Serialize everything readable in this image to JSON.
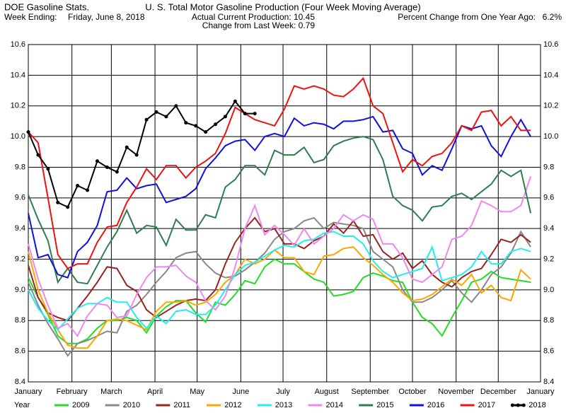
{
  "chart_data": {
    "type": "line",
    "header": {
      "left_title": "DOE Gasoline Stats.",
      "week_label": "Week Ending:",
      "week_value": "Friday, June 8, 2018",
      "title": "U. S. Total Motor Gasoline Production (Four Week Moving Average)",
      "production": "Actual Current Production: 10.45",
      "change": "Change from Last Week: 0.79",
      "pct_label": "Percent Change from One Year Ago:",
      "pct_value": "6.2%"
    },
    "legend_title": "Year",
    "x": [
      0,
      1,
      2,
      3,
      4,
      5,
      6,
      7,
      8,
      9,
      10,
      11,
      12,
      13,
      14,
      15,
      16,
      17,
      18,
      19,
      20,
      21,
      22,
      23,
      24,
      25,
      26,
      27,
      28,
      29,
      30,
      31,
      32,
      33,
      34,
      35,
      36,
      37,
      38,
      39,
      40,
      41,
      42,
      43,
      44,
      45,
      46,
      47,
      48,
      49,
      50,
      51
    ],
    "xlim": [
      0,
      52
    ],
    "xticks": [
      {
        "value": 0,
        "label": "January"
      },
      {
        "value": 4.43,
        "label": "February"
      },
      {
        "value": 8.43,
        "label": "March"
      },
      {
        "value": 12.86,
        "label": "April"
      },
      {
        "value": 17.14,
        "label": "May"
      },
      {
        "value": 21.57,
        "label": "June"
      },
      {
        "value": 25.86,
        "label": "July"
      },
      {
        "value": 30.29,
        "label": "August"
      },
      {
        "value": 34.71,
        "label": "September"
      },
      {
        "value": 39,
        "label": "October"
      },
      {
        "value": 43.43,
        "label": "November"
      },
      {
        "value": 47.71,
        "label": "December"
      },
      {
        "value": 52,
        "label": "January"
      }
    ],
    "ylim": [
      8.4,
      10.6
    ],
    "yticks": [
      8.4,
      8.6,
      8.8,
      {
        "value": 9,
        "label": "9.0"
      },
      9.2,
      9.4,
      9.6,
      9.8,
      {
        "value": 10,
        "label": "10.0"
      },
      10.2,
      10.4,
      10.6
    ],
    "grid": true,
    "series": [
      {
        "name": "2009",
        "color": "#22dd22",
        "values": [
          9.08,
          8.95,
          8.84,
          8.7,
          8.65,
          8.65,
          8.68,
          8.75,
          8.8,
          8.8,
          8.82,
          8.8,
          8.72,
          8.83,
          8.89,
          8.93,
          8.93,
          8.85,
          8.79,
          8.92,
          8.9,
          8.97,
          9.06,
          9.04,
          9.15,
          9.2,
          9.17,
          9.17,
          9.12,
          9.07,
          9.05,
          8.96,
          8.97,
          8.99,
          9.08,
          9.11,
          9.09,
          9.06,
          9.05,
          8.92,
          8.82,
          8.78,
          8.7,
          8.82,
          8.93,
          9.05,
          9.07,
          9.12,
          9.08,
          9.07,
          9.06,
          9.05
        ]
      },
      {
        "name": "2010",
        "color": "#888888",
        "values": [
          9.05,
          8.9,
          8.78,
          8.68,
          8.57,
          8.65,
          8.67,
          8.7,
          8.73,
          8.72,
          8.86,
          8.9,
          8.97,
          9.05,
          9.12,
          9.21,
          9.24,
          9.25,
          9.17,
          9.11,
          9.08,
          9.09,
          9.13,
          9.18,
          9.24,
          9.33,
          9.38,
          9.4,
          9.45,
          9.47,
          9.4,
          9.44,
          9.43,
          9.42,
          9.4,
          9.25,
          9.2,
          9.15,
          9.0,
          8.92,
          8.92,
          8.95,
          9.0,
          9.06,
          8.98,
          8.92,
          9.0,
          9.1,
          9.15,
          9.24,
          9.38,
          9.28
        ]
      },
      {
        "name": "2011",
        "color": "#9b2222",
        "values": [
          9.16,
          8.95,
          8.85,
          8.82,
          8.8,
          8.88,
          8.96,
          9.05,
          9.15,
          9.14,
          9.03,
          8.99,
          8.87,
          8.82,
          8.86,
          8.9,
          8.93,
          8.94,
          8.93,
          9.0,
          9.17,
          9.31,
          9.4,
          9.47,
          9.38,
          9.4,
          9.3,
          9.3,
          9.27,
          9.32,
          9.35,
          9.43,
          9.37,
          9.45,
          9.35,
          9.36,
          9.25,
          9.2,
          9.24,
          9.14,
          9.19,
          9.1,
          9.05,
          9.02,
          9.08,
          9.12,
          9.14,
          9.23,
          9.33,
          9.31,
          9.36,
          9.31
        ]
      },
      {
        "name": "2012",
        "color": "#ffa500",
        "values": [
          9.25,
          9.0,
          8.85,
          8.74,
          8.64,
          8.62,
          8.62,
          8.7,
          8.8,
          8.81,
          8.8,
          8.77,
          8.74,
          8.86,
          8.92,
          8.92,
          8.93,
          8.9,
          8.92,
          8.97,
          9.05,
          9.1,
          9.2,
          9.17,
          9.2,
          9.26,
          9.21,
          9.21,
          9.12,
          9.1,
          9.22,
          9.23,
          9.27,
          9.28,
          9.21,
          9.16,
          9.1,
          9.05,
          8.98,
          8.93,
          8.94,
          8.97,
          9.02,
          9.07,
          9.03,
          9.1,
          8.98,
          9.03,
          8.95,
          8.93,
          9.13,
          9.07
        ]
      },
      {
        "name": "2013",
        "color": "#22eeee",
        "values": [
          9.0,
          8.88,
          8.8,
          8.74,
          8.81,
          8.88,
          8.91,
          8.91,
          8.95,
          8.92,
          8.92,
          8.82,
          8.75,
          8.83,
          8.78,
          8.86,
          8.87,
          8.84,
          8.84,
          8.9,
          9.0,
          9.1,
          9.16,
          9.18,
          9.22,
          9.26,
          9.29,
          9.28,
          9.32,
          9.33,
          9.37,
          9.38,
          9.35,
          9.35,
          9.3,
          9.19,
          9.12,
          9.08,
          9.1,
          9.12,
          9.14,
          9.28,
          9.06,
          9.08,
          9.1,
          9.15,
          9.25,
          9.17,
          9.17,
          9.25,
          9.27,
          9.25
        ]
      },
      {
        "name": "2014",
        "color": "#ee88ee",
        "values": [
          9.3,
          9.07,
          8.9,
          8.75,
          8.78,
          8.7,
          8.83,
          8.91,
          8.9,
          8.82,
          8.83,
          8.97,
          9.08,
          9.15,
          9.15,
          9.16,
          9.09,
          9.05,
          8.93,
          8.87,
          8.96,
          9.15,
          9.4,
          9.55,
          9.36,
          9.42,
          9.36,
          9.29,
          9.4,
          9.3,
          9.35,
          9.4,
          9.49,
          9.45,
          9.49,
          9.46,
          9.3,
          9.3,
          9.21,
          9.07,
          9.05,
          9.1,
          9.15,
          9.33,
          9.35,
          9.42,
          9.58,
          9.55,
          9.51,
          9.51,
          9.55,
          9.74
        ]
      },
      {
        "name": "2015",
        "color": "#2e7d4f",
        "values": [
          9.62,
          9.46,
          9.32,
          9.05,
          9.14,
          9.05,
          9.04,
          9.16,
          9.28,
          9.38,
          9.52,
          9.37,
          9.42,
          9.41,
          9.29,
          9.46,
          9.39,
          9.39,
          9.49,
          9.47,
          9.67,
          9.72,
          9.81,
          9.81,
          9.75,
          9.91,
          9.88,
          9.88,
          9.93,
          9.83,
          9.85,
          9.94,
          9.97,
          9.99,
          10.0,
          9.98,
          9.85,
          9.61,
          9.55,
          9.52,
          9.45,
          9.54,
          9.55,
          9.61,
          9.63,
          9.59,
          9.64,
          9.69,
          9.78,
          9.74,
          9.78,
          9.5
        ]
      },
      {
        "name": "2016",
        "color": "#1111dd",
        "values": [
          9.5,
          9.21,
          9.23,
          9.1,
          9.08,
          9.25,
          9.31,
          9.42,
          9.64,
          9.65,
          9.73,
          9.66,
          9.68,
          9.69,
          9.57,
          9.59,
          9.61,
          9.66,
          9.79,
          9.86,
          9.94,
          9.97,
          9.98,
          9.91,
          10.0,
          10.02,
          10.0,
          10.12,
          10.07,
          10.09,
          10.08,
          10.05,
          10.1,
          10.1,
          10.11,
          10.13,
          10.03,
          10.04,
          9.92,
          9.89,
          9.75,
          9.81,
          9.78,
          9.92,
          10.07,
          10.05,
          10.07,
          9.94,
          9.87,
          10.0,
          10.11,
          10.0
        ]
      },
      {
        "name": "2017",
        "color": "#ee1111",
        "values": [
          10.03,
          9.96,
          9.6,
          9.23,
          9.14,
          9.17,
          9.17,
          9.31,
          9.41,
          9.42,
          9.57,
          9.67,
          9.79,
          9.72,
          9.81,
          9.81,
          9.73,
          9.8,
          9.84,
          9.89,
          10.02,
          10.19,
          10.15,
          10.11,
          10.09,
          10.07,
          10.18,
          10.33,
          10.31,
          10.33,
          10.31,
          10.27,
          10.26,
          10.31,
          10.38,
          10.2,
          10.15,
          9.96,
          9.77,
          9.85,
          9.81,
          9.87,
          9.89,
          9.96,
          10.07,
          10.04,
          10.16,
          10.17,
          10.07,
          10.13,
          10.04,
          10.04
        ]
      },
      {
        "name": "2018",
        "color": "#000000",
        "markers": true,
        "values": [
          10.03,
          9.88,
          9.79,
          9.57,
          9.54,
          9.68,
          9.65,
          9.84,
          9.8,
          9.77,
          9.93,
          9.88,
          10.11,
          10.16,
          10.13,
          10.2,
          10.09,
          10.07,
          10.03,
          10.08,
          10.13,
          10.23,
          10.15,
          10.15,
          null,
          null,
          null,
          null,
          null,
          null,
          null,
          null,
          null,
          null,
          null,
          null,
          null,
          null,
          null,
          null,
          null,
          null,
          null,
          null,
          null,
          null,
          null,
          null,
          null,
          null,
          null,
          null
        ]
      }
    ]
  }
}
